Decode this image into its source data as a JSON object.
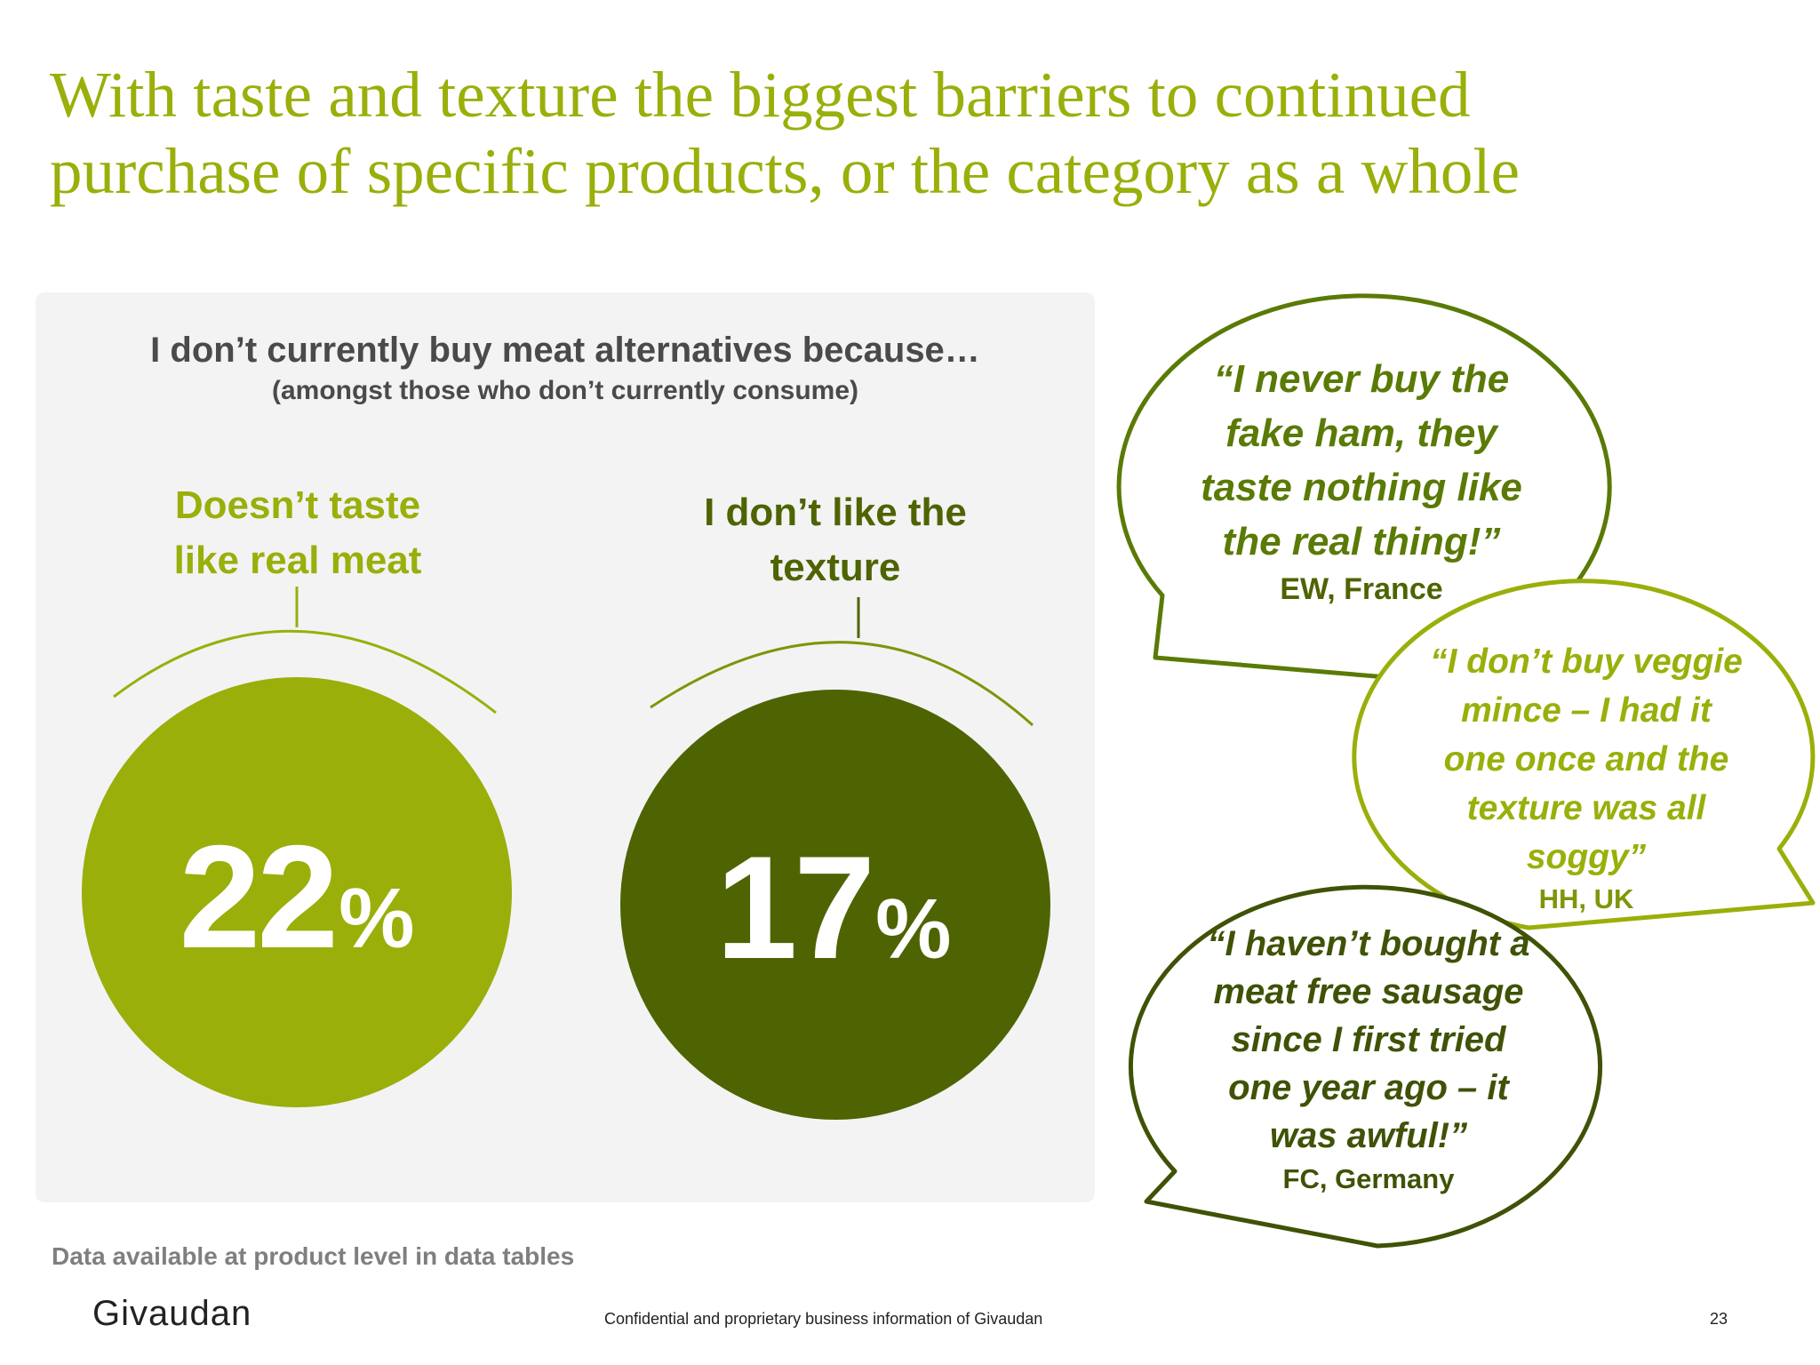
{
  "title": {
    "line1": "With taste and texture the biggest barriers to continued",
    "line2": "purchase of specific products, or the category as a whole"
  },
  "survey": {
    "question": "I don’t currently buy meat alternatives because…",
    "subtitle": "(amongst those who don’t currently consume)"
  },
  "stats": [
    {
      "label_line1": "Doesn’t taste",
      "label_line2": "like real meat",
      "value": "22",
      "unit": "%",
      "color": "#9aaf0a"
    },
    {
      "label_line1": "I don’t like the",
      "label_line2": "texture",
      "value": "17",
      "unit": "%",
      "color": "#4e6402"
    }
  ],
  "quotes": [
    {
      "lines": [
        "“I never buy the",
        "fake ham, they",
        "taste nothing like",
        "the real thing!”"
      ],
      "attribution": "EW, France",
      "color": "#5a7a06"
    },
    {
      "lines": [
        "“I don’t buy veggie",
        "mince – I had it",
        "one once and the",
        "texture was all",
        "soggy”"
      ],
      "attribution": "HH, UK",
      "color": "#9aaf0a"
    },
    {
      "lines": [
        "“I haven’t bought a",
        "meat free sausage",
        "since I first tried",
        "one year ago – it",
        "was awful!”"
      ],
      "attribution": "FC, Germany",
      "color": "#3f5206"
    }
  ],
  "footer": {
    "note": "Data available at product level in data tables",
    "brand": "Givaudan",
    "confidential": "Confidential and proprietary business information of Givaudan",
    "page_number": "23"
  }
}
